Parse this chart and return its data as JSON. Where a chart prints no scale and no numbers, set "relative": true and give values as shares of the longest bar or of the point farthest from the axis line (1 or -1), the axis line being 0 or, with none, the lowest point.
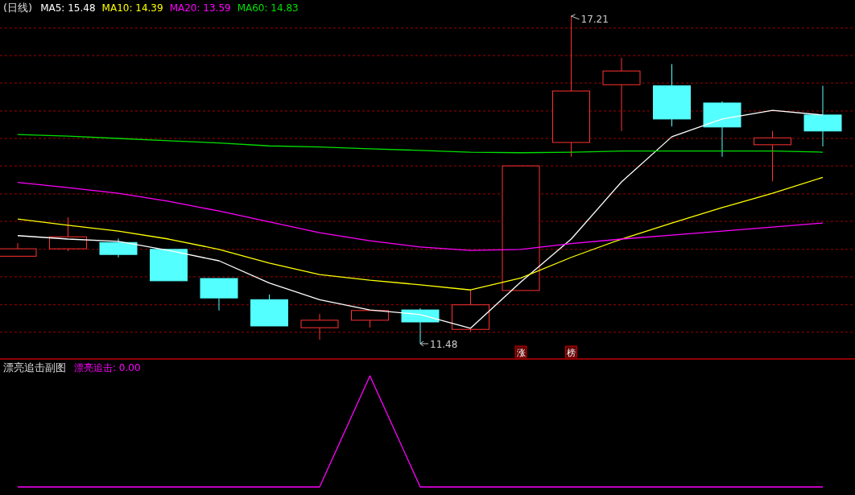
{
  "chart_data": [
    {
      "type": "candlestick",
      "title": "(日线)",
      "categories": [
        null,
        null,
        null,
        null,
        null,
        null,
        null,
        null,
        null,
        null,
        null,
        null,
        null,
        null,
        null,
        null,
        null
      ],
      "ohlc": [
        [
          13.01,
          13.24,
          13.01,
          13.14
        ],
        [
          13.14,
          13.69,
          13.1,
          13.35
        ],
        [
          13.25,
          13.32,
          12.99,
          13.04
        ],
        [
          13.13,
          13.13,
          12.58,
          12.58
        ],
        [
          12.62,
          12.62,
          12.06,
          12.28
        ],
        [
          12.25,
          12.34,
          11.79,
          11.79
        ],
        [
          11.76,
          12.0,
          11.55,
          11.89
        ],
        [
          11.89,
          12.06,
          11.76,
          12.06
        ],
        [
          12.07,
          12.1,
          11.48,
          11.86
        ],
        [
          11.73,
          12.41,
          11.69,
          12.16
        ],
        [
          12.41,
          14.59,
          12.41,
          14.59
        ],
        [
          15.0,
          17.21,
          14.75,
          15.9
        ],
        [
          16.01,
          16.48,
          15.2,
          16.25
        ],
        [
          15.99,
          16.37,
          15.28,
          15.41
        ],
        [
          15.69,
          15.72,
          14.75,
          15.27
        ],
        [
          14.96,
          15.2,
          14.32,
          15.08
        ],
        [
          15.48,
          15.99,
          14.93,
          15.2
        ]
      ],
      "colors": [
        "#ff3232",
        "#ff3232",
        "#54ffff",
        "#54ffff",
        "#54ffff",
        "#54ffff",
        "#ff3232",
        "#ff3232",
        "#54ffff",
        "#ff3232",
        "#ff3232",
        "#ff3232",
        "#ff3232",
        "#54ffff",
        "#54ffff",
        "#ff3232",
        "#54ffff"
      ],
      "series": [
        {
          "type": "line",
          "name": "MA5: 15.48",
          "color": "#ffffff",
          "values": [
            13.37,
            13.31,
            13.27,
            13.11,
            12.93,
            12.54,
            12.25,
            12.07,
            11.99,
            11.75,
            12.56,
            13.31,
            14.31,
            15.1,
            15.41,
            15.56,
            15.48
          ]
        },
        {
          "type": "line",
          "name": "MA10: 14.39",
          "color": "#ffff00",
          "values": [
            13.66,
            13.55,
            13.45,
            13.31,
            13.13,
            12.89,
            12.69,
            12.59,
            12.51,
            12.42,
            12.63,
            12.99,
            13.31,
            13.59,
            13.86,
            14.11,
            14.39
          ]
        },
        {
          "type": "line",
          "name": "MA20: 13.59",
          "color": "#ff00ff",
          "values": [
            14.3,
            14.21,
            14.11,
            13.97,
            13.8,
            13.61,
            13.42,
            13.28,
            13.17,
            13.11,
            13.13,
            13.23,
            13.31,
            13.38,
            13.45,
            13.52,
            13.59
          ]
        },
        {
          "type": "line",
          "name": "MA60: 14.83",
          "color": "#00e000",
          "values": [
            15.14,
            15.11,
            15.07,
            15.03,
            14.99,
            14.94,
            14.92,
            14.89,
            14.86,
            14.83,
            14.82,
            14.83,
            14.85,
            14.85,
            14.85,
            14.85,
            14.83
          ]
        }
      ],
      "yticks": [
        {
          "value": 17.0,
          "label": null
        },
        {
          "value": 16.52,
          "label": null
        },
        {
          "value": 16.04,
          "label": null
        },
        {
          "value": 15.55,
          "label": null
        },
        {
          "value": 15.07,
          "label": null
        },
        {
          "value": 14.59,
          "label": null
        },
        {
          "value": 14.1,
          "label": null
        },
        {
          "value": 13.62,
          "label": null
        },
        {
          "value": 13.13,
          "label": null
        },
        {
          "value": 12.65,
          "label": null
        },
        {
          "value": 12.16,
          "label": null
        },
        {
          "value": 11.68,
          "label": null
        }
      ],
      "grid": "y",
      "legend": "top left",
      "annotations": [
        "17.21",
        "11.48",
        "涨",
        "榜"
      ]
    },
    {
      "type": "line",
      "title": "漂亮追击副图",
      "categories": [
        null,
        null,
        null,
        null,
        null,
        null,
        null,
        null,
        null,
        null,
        null,
        null,
        null,
        null,
        null,
        null,
        null
      ],
      "relative": true,
      "legend": "top left",
      "series": [
        {
          "name": "漂亮追击: 0.00",
          "color": "#ff00ff",
          "values": [
            0,
            0,
            0,
            0,
            0,
            0,
            0,
            1,
            0,
            0,
            0,
            0,
            0,
            0,
            0,
            0,
            0
          ]
        }
      ]
    }
  ]
}
